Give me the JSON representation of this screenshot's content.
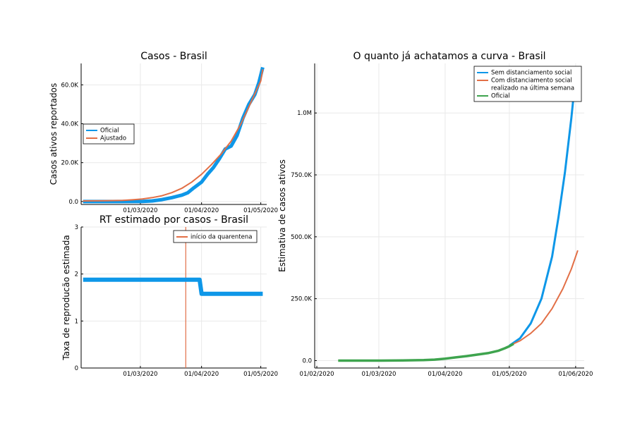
{
  "colors": {
    "blue": "#0E97E8",
    "orange": "#E26F46",
    "green": "#3EA44E"
  },
  "chart_data": [
    {
      "id": "cases",
      "type": "line",
      "title": "Casos - Brasil",
      "ylabel": "Casos ativos reportados",
      "xlabel": "",
      "x_ticks": [
        {
          "x": 29,
          "label": "01/03/2020"
        },
        {
          "x": 60,
          "label": "01/04/2020"
        },
        {
          "x": 90,
          "label": "01/05/2020"
        }
      ],
      "y_ticks": [
        {
          "y": 0,
          "label": "0.0"
        },
        {
          "y": 20000,
          "label": "20.0K"
        },
        {
          "y": 40000,
          "label": "40.0K"
        },
        {
          "y": 60000,
          "label": "60.0K"
        }
      ],
      "xlim": [
        -1,
        93
      ],
      "ylim": [
        -1500,
        71000
      ],
      "legend_position": "middle-left",
      "series": [
        {
          "name": "Oficial",
          "color": "blue",
          "width": 5,
          "x": [
            0,
            20,
            30,
            35,
            40,
            45,
            50,
            53,
            56,
            60,
            63,
            66,
            69,
            72,
            75,
            78,
            81,
            84,
            87,
            89,
            91
          ],
          "y": [
            0,
            0,
            50,
            300,
            1000,
            2000,
            3300,
            4500,
            7000,
            10000,
            14000,
            17500,
            22000,
            27000,
            28500,
            34000,
            43000,
            50000,
            55000,
            61000,
            69000
          ]
        },
        {
          "name": "Ajustado",
          "color": "orange",
          "width": 2,
          "x": [
            0,
            10,
            20,
            25,
            30,
            35,
            40,
            45,
            50,
            55,
            60,
            65,
            70,
            75,
            80,
            85,
            90,
            91
          ],
          "y": [
            300,
            400,
            600,
            900,
            1300,
            2000,
            3000,
            4600,
            6800,
            10000,
            14000,
            19000,
            24500,
            31000,
            40000,
            51000,
            62000,
            68000
          ]
        }
      ]
    },
    {
      "id": "rt",
      "type": "line",
      "title": "RT estimado por casos - Brasil",
      "ylabel": "Taxa de reproducão estimada",
      "xlabel": "",
      "x_ticks": [
        {
          "x": 29,
          "label": "01/03/2020"
        },
        {
          "x": 60,
          "label": "01/04/2020"
        },
        {
          "x": 90,
          "label": "01/05/2020"
        }
      ],
      "y_ticks": [
        {
          "y": 0,
          "label": "0"
        },
        {
          "y": 1,
          "label": "1"
        },
        {
          "y": 2,
          "label": "2"
        },
        {
          "y": 3,
          "label": "3"
        }
      ],
      "xlim": [
        -1,
        93
      ],
      "ylim": [
        0,
        3
      ],
      "legend_position": "top-right",
      "series": [
        {
          "name": "RT",
          "color": "blue",
          "width": 6,
          "in_legend": false,
          "x": [
            0,
            58,
            59,
            60,
            63,
            72,
            75,
            85,
            91
          ],
          "y": [
            1.88,
            1.88,
            1.88,
            1.58,
            1.58,
            1.58,
            1.58,
            1.58,
            1.58
          ]
        }
      ],
      "vlines": [
        {
          "name": "início da quarentena",
          "x": 52,
          "color": "orange"
        }
      ]
    },
    {
      "id": "curve",
      "type": "line",
      "title": "O quanto já achatamos a curva - Brasil",
      "ylabel": "Estimativa de casos ativos",
      "xlabel": "",
      "x_ticks": [
        {
          "x": 0,
          "label": "01/02/2020"
        },
        {
          "x": 29,
          "label": "01/03/2020"
        },
        {
          "x": 60,
          "label": "01/04/2020"
        },
        {
          "x": 90,
          "label": "01/05/2020"
        },
        {
          "x": 121,
          "label": "01/06/2020"
        }
      ],
      "y_ticks": [
        {
          "y": 0,
          "label": "0.0"
        },
        {
          "y": 250000,
          "label": "250.0K"
        },
        {
          "y": 500000,
          "label": "500.0K"
        },
        {
          "y": 750000,
          "label": "750.0K"
        },
        {
          "y": 1000000,
          "label": "1.0M"
        }
      ],
      "xlim": [
        -1,
        125
      ],
      "ylim": [
        -30000,
        1200000
      ],
      "legend_position": "top-right",
      "series": [
        {
          "name": "Sem distanciamento social",
          "color": "blue",
          "width": 3,
          "x": [
            90,
            95,
            100,
            105,
            110,
            113,
            116,
            119,
            121
          ],
          "y": [
            60000,
            90000,
            150000,
            250000,
            420000,
            580000,
            760000,
            980000,
            1150000
          ]
        },
        {
          "name": "Com distanciamento social realizado na última semana",
          "legend_lines": [
            "Com distanciamento social",
            "realizado na última semana"
          ],
          "color": "orange",
          "width": 2,
          "x": [
            90,
            95,
            100,
            105,
            110,
            115,
            119,
            122
          ],
          "y": [
            60000,
            80000,
            110000,
            150000,
            210000,
            290000,
            370000,
            445000
          ]
        },
        {
          "name": "Oficial",
          "color": "green",
          "width": 3.5,
          "x": [
            10,
            20,
            30,
            40,
            50,
            55,
            60,
            65,
            70,
            75,
            80,
            85,
            88,
            90,
            92
          ],
          "y": [
            0,
            0,
            0,
            500,
            2000,
            4000,
            8000,
            13000,
            18000,
            24000,
            30000,
            40000,
            50000,
            58000,
            68000
          ]
        }
      ]
    }
  ]
}
